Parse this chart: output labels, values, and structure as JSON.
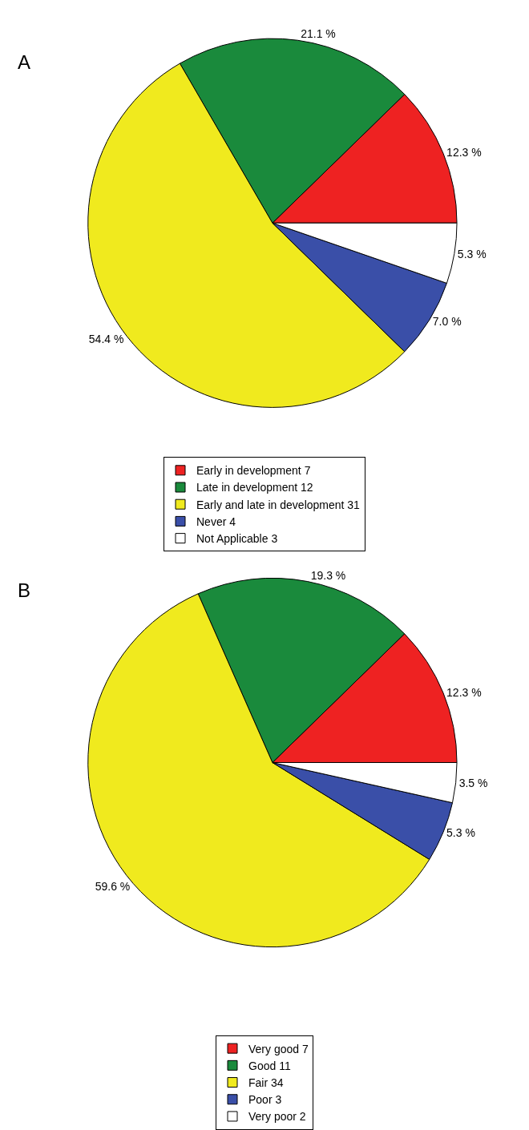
{
  "chart_data": [
    {
      "type": "pie",
      "title": "A",
      "categories": [
        "Early in development 7",
        "Late in development 12",
        "Early and late in development 31",
        "Never 4",
        "Not Applicable 3"
      ],
      "values": [
        12.3,
        21.1,
        54.4,
        7.0,
        5.3
      ],
      "value_labels": [
        "12.3 %",
        "21.1 %",
        "54.4 %",
        "7.0 %",
        "5.3 %"
      ],
      "colors": [
        "#ee2222",
        "#1a8a3c",
        "#f0ea1e",
        "#3a4fa8",
        "#ffffff"
      ],
      "legend": "bottom"
    },
    {
      "type": "pie",
      "title": "B",
      "categories": [
        "Very good 7",
        "Good 11",
        "Fair 34",
        "Poor 3",
        "Very poor 2"
      ],
      "values": [
        12.3,
        19.3,
        59.6,
        5.3,
        3.5
      ],
      "value_labels": [
        "12.3 %",
        "19.3 %",
        "59.6 %",
        "5.3 %",
        "3.5 %"
      ],
      "colors": [
        "#ee2222",
        "#1a8a3c",
        "#f0ea1e",
        "#3a4fa8",
        "#ffffff"
      ],
      "legend": "bottom"
    }
  ]
}
